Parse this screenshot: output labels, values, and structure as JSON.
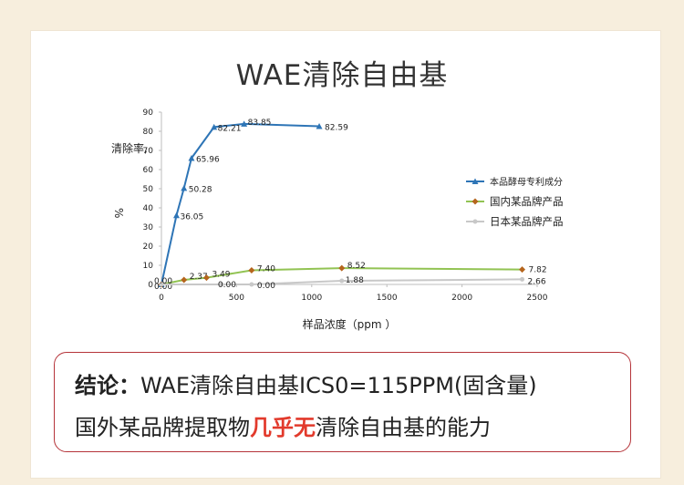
{
  "title": "WAE清除自由基",
  "chart_data": {
    "type": "line",
    "ylabel_main": "清除率,",
    "ylabel_unit": "%",
    "xlabel": "样品浓度（ppm ）",
    "xlim": [
      0,
      2500
    ],
    "ylim": [
      0,
      90
    ],
    "xticks": [
      "0",
      "500",
      "1000",
      "1500",
      "2000",
      "2500"
    ],
    "yticks": [
      "0",
      "10",
      "20",
      "30",
      "40",
      "50",
      "60",
      "70",
      "80",
      "90"
    ],
    "legend_position": "right",
    "series": [
      {
        "name": "本品酵母专利成分",
        "color": "#2e75b6",
        "marker": "triangle",
        "x": [
          0,
          100,
          150,
          200,
          350,
          550,
          1050
        ],
        "y": [
          0,
          36.05,
          50.28,
          65.96,
          82.21,
          83.85,
          82.59
        ],
        "labels": [
          "",
          "36.05",
          "50.28",
          "65.96",
          "82.21",
          "83.85",
          "82.59"
        ]
      },
      {
        "name": "国内某品牌产品",
        "color": "#92c353",
        "marker": "diamond",
        "x": [
          0,
          150,
          300,
          600,
          1200,
          2400
        ],
        "y": [
          0,
          2.37,
          3.49,
          7.4,
          8.52,
          7.82
        ],
        "labels": [
          "0.00",
          "2.37",
          "3.49",
          "7.40",
          "8.52",
          "7.82"
        ]
      },
      {
        "name": "日本某品牌产品",
        "color": "#c8c8c8",
        "marker": "circle",
        "x": [
          0,
          400,
          600,
          1200,
          2400
        ],
        "y": [
          0,
          0,
          0,
          1.88,
          2.66
        ],
        "labels": [
          "0.00",
          "0.00",
          "0.00",
          "1.88",
          "2.66"
        ]
      }
    ]
  },
  "conclusion": {
    "line1_prefix": "结论：",
    "line1_rest": "WAE清除自由基ICS0=115PPM(固含量)",
    "line2_before": "国外某品牌提取物",
    "line2_highlight": "几乎无",
    "line2_after": "清除自由基的能力"
  }
}
